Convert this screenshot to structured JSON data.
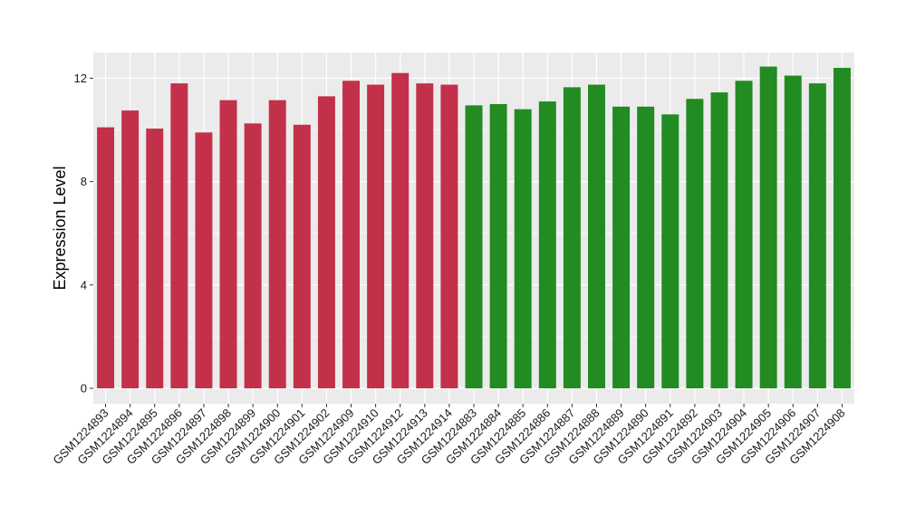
{
  "chart_data": {
    "type": "bar",
    "title": "",
    "xlabel": "",
    "ylabel": "Expression Level",
    "ylim": [
      0,
      12.9
    ],
    "yticks": [
      0,
      4,
      8,
      12
    ],
    "grid": true,
    "legend": "none",
    "background": "#ebebeb",
    "gridline_color": "#ffffff",
    "categories": [
      "GSM1224893",
      "GSM1224894",
      "GSM1224895",
      "GSM1224896",
      "GSM1224897",
      "GSM1224898",
      "GSM1224899",
      "GSM1224900",
      "GSM1224901",
      "GSM1224902",
      "GSM1224909",
      "GSM1224910",
      "GSM1224912",
      "GSM1224913",
      "GSM1224914",
      "GSM1224883",
      "GSM1224884",
      "GSM1224885",
      "GSM1224886",
      "GSM1224887",
      "GSM1224888",
      "GSM1224889",
      "GSM1224890",
      "GSM1224891",
      "GSM1224892",
      "GSM1224903",
      "GSM1224904",
      "GSM1224905",
      "GSM1224906",
      "GSM1224907",
      "GSM1224908"
    ],
    "values": [
      10.1,
      10.75,
      10.05,
      11.8,
      9.9,
      11.15,
      10.25,
      11.15,
      10.2,
      11.3,
      11.9,
      11.75,
      12.2,
      11.8,
      11.75,
      10.95,
      11.0,
      10.8,
      11.1,
      11.65,
      11.75,
      10.9,
      10.9,
      10.6,
      11.2,
      11.45,
      11.9,
      12.45,
      12.1,
      11.8,
      12.4
    ],
    "colors": [
      "#c3304a",
      "#c3304a",
      "#c3304a",
      "#c3304a",
      "#c3304a",
      "#c3304a",
      "#c3304a",
      "#c3304a",
      "#c3304a",
      "#c3304a",
      "#c3304a",
      "#c3304a",
      "#c3304a",
      "#c3304a",
      "#c3304a",
      "#228b22",
      "#228b22",
      "#228b22",
      "#228b22",
      "#228b22",
      "#228b22",
      "#228b22",
      "#228b22",
      "#228b22",
      "#228b22",
      "#228b22",
      "#228b22",
      "#228b22",
      "#228b22",
      "#228b22",
      "#228b22"
    ]
  }
}
